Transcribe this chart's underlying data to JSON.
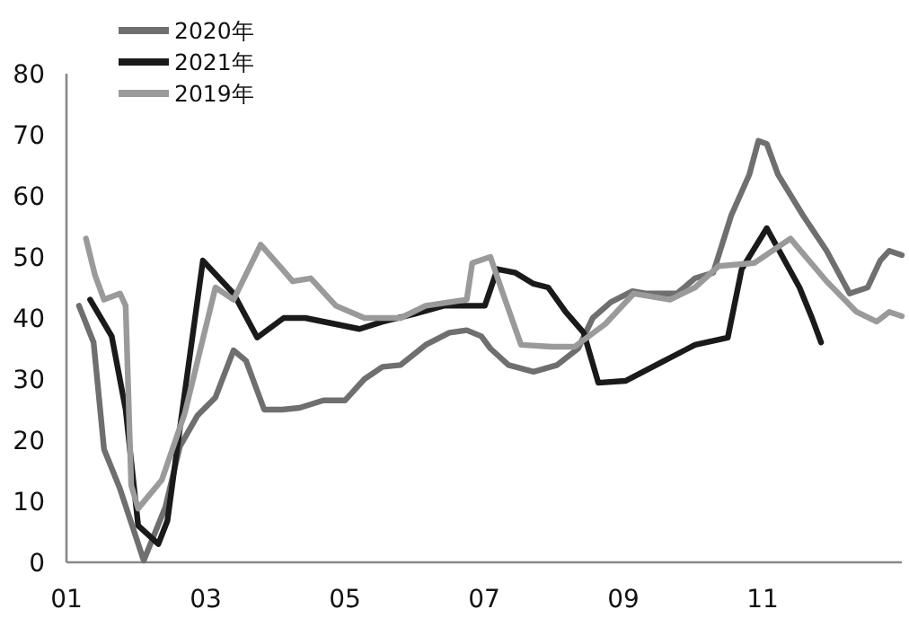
{
  "chart_data": {
    "type": "line",
    "legend": "top left",
    "grid": false,
    "line_style": "solid",
    "marker": "none",
    "xlim": [
      1,
      13
    ],
    "xticks": [
      {
        "value": 1,
        "label": "01"
      },
      {
        "value": 3,
        "label": "03"
      },
      {
        "value": 5,
        "label": "05"
      },
      {
        "value": 7,
        "label": "07"
      },
      {
        "value": 9,
        "label": "09"
      },
      {
        "value": 11,
        "label": "11"
      }
    ],
    "ylim": [
      0,
      80
    ],
    "yticks": [
      0,
      10,
      20,
      30,
      40,
      50,
      60,
      70,
      80
    ],
    "series": [
      {
        "name": "2020年",
        "color": "#6f6f6f",
        "x": [
          1.18,
          1.39,
          1.54,
          1.77,
          2.11,
          2.42,
          2.63,
          2.88,
          3.14,
          3.4,
          3.58,
          3.84,
          4.1,
          4.35,
          4.69,
          5.0,
          5.28,
          5.54,
          5.8,
          6.16,
          6.5,
          6.75,
          6.96,
          7.09,
          7.35,
          7.71,
          8.05,
          8.35,
          8.56,
          8.82,
          9.13,
          9.34,
          9.77,
          10.03,
          10.29,
          10.55,
          10.81,
          10.94,
          11.06,
          11.22,
          11.58,
          11.92,
          12.25,
          12.51,
          12.69,
          12.82,
          13.0
        ],
        "values": [
          42,
          36,
          18.5,
          12,
          0.3,
          9,
          19,
          24,
          27,
          34.7,
          33,
          25,
          25,
          25.3,
          26.5,
          26.5,
          30,
          32,
          32.3,
          35.6,
          37.6,
          38,
          37,
          35,
          32.3,
          31.2,
          32.3,
          35,
          40,
          42.6,
          44.4,
          44,
          44,
          46.5,
          47.4,
          56.8,
          63.5,
          69,
          68.5,
          63.5,
          56.8,
          51,
          44,
          45,
          49.4,
          51,
          50.3
        ]
      },
      {
        "name": "2021年",
        "color": "#1a1a1a",
        "x": [
          1.34,
          1.65,
          1.85,
          2.03,
          2.32,
          2.45,
          2.63,
          2.96,
          3.4,
          3.74,
          4.12,
          4.43,
          5.21,
          5.54,
          5.98,
          6.42,
          7.01,
          7.19,
          7.45,
          7.71,
          7.92,
          8.17,
          8.43,
          8.64,
          9.03,
          9.52,
          10.03,
          10.5,
          10.7,
          11.06,
          11.53,
          11.71,
          11.84
        ],
        "values": [
          43,
          37,
          25,
          6,
          3,
          6.8,
          22,
          49.4,
          44,
          36.8,
          40,
          40,
          38.2,
          39.4,
          40.6,
          42,
          42,
          48,
          47.4,
          45.6,
          45,
          41,
          37.6,
          29.4,
          29.7,
          32.6,
          35.6,
          36.8,
          48,
          54.7,
          45,
          40,
          36
        ]
      },
      {
        "name": "2019年",
        "color": "#9a9a9a",
        "x": [
          1.28,
          1.41,
          1.54,
          1.77,
          1.85,
          1.93,
          2.03,
          2.37,
          2.7,
          3.14,
          3.4,
          3.79,
          4.1,
          4.25,
          4.51,
          4.87,
          5.28,
          5.8,
          6.16,
          6.75,
          6.83,
          7.09,
          7.27,
          7.53,
          7.97,
          8.3,
          8.74,
          9.15,
          9.67,
          10.03,
          10.37,
          10.88,
          11.4,
          11.92,
          12.35,
          12.64,
          12.82,
          13.0
        ],
        "values": [
          53,
          47,
          43,
          44,
          42,
          12.6,
          8.8,
          13.5,
          24.4,
          45,
          43,
          52,
          48,
          46,
          46.5,
          42,
          40,
          40,
          42,
          43,
          49,
          50,
          44,
          35.6,
          35.3,
          35.3,
          39,
          44,
          43,
          45,
          48.5,
          49,
          53,
          46,
          41,
          39.4,
          41,
          40.3
        ]
      }
    ]
  }
}
